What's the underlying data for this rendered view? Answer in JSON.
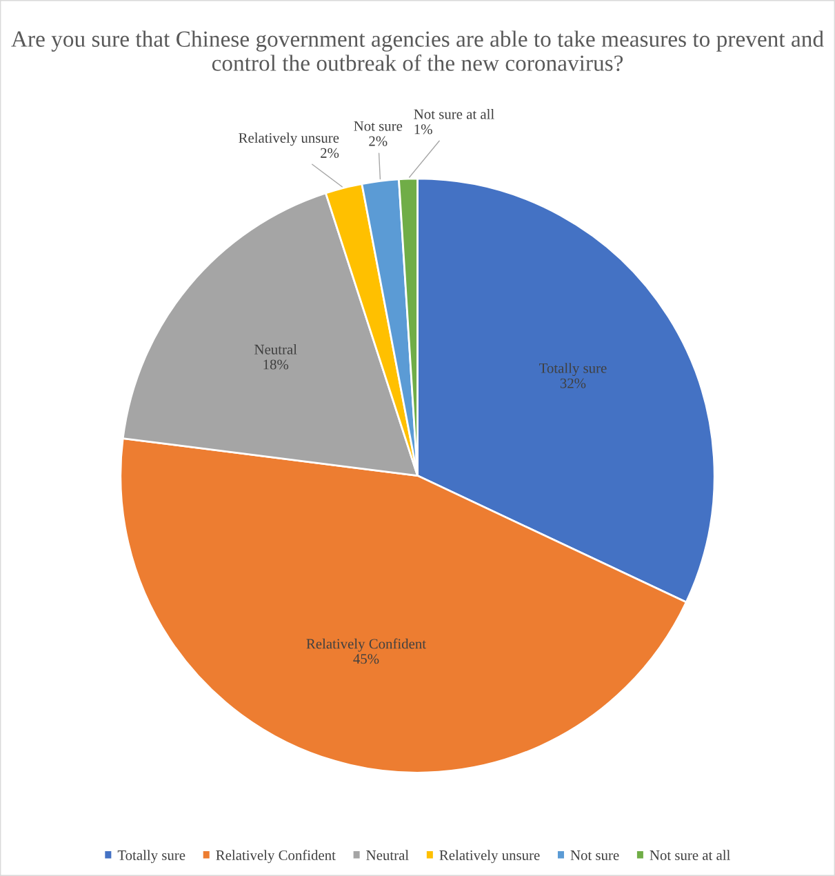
{
  "chart_data": {
    "type": "pie",
    "title": "Are you sure that Chinese government agencies are able to take measures to prevent and control the outbreak of the new coronavirus?",
    "categories": [
      "Totally sure",
      "Relatively Confident",
      "Neutral",
      "Relatively unsure",
      "Not sure",
      "Not sure at all"
    ],
    "values": [
      32,
      45,
      18,
      2,
      2,
      1
    ],
    "value_labels": [
      "32%",
      "45%",
      "18%",
      "2%",
      "2%",
      "1%"
    ],
    "colors": [
      "#4472c4",
      "#ed7d31",
      "#a5a5a5",
      "#ffc000",
      "#5b9bd5",
      "#70ad47"
    ],
    "legend": "bottom"
  }
}
